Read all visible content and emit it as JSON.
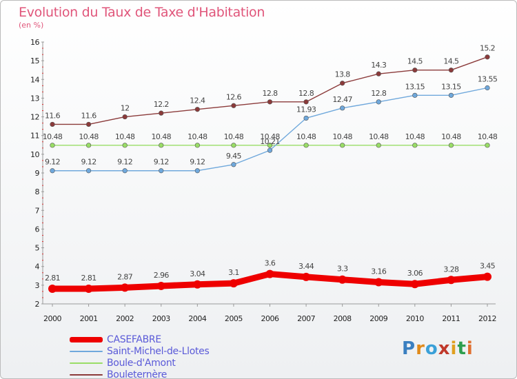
{
  "chart_data": {
    "type": "line",
    "title": "Evolution du Taux de Taxe d'Habitation",
    "subtitle": "(en %)",
    "x": [
      "2000",
      "2001",
      "2002",
      "2003",
      "2004",
      "2005",
      "2006",
      "2007",
      "2008",
      "2009",
      "2010",
      "2011",
      "2012"
    ],
    "ylim": [
      2,
      16
    ],
    "yticks": [
      2,
      3,
      4,
      5,
      6,
      7,
      8,
      9,
      10,
      11,
      12,
      13,
      14,
      15,
      16
    ],
    "grid": false,
    "legend_position": "bottom-left",
    "series": [
      {
        "name": "CASEFABRE",
        "color": "#ee0000",
        "values": [
          2.81,
          2.81,
          2.87,
          2.96,
          3.04,
          3.1,
          3.6,
          3.44,
          3.3,
          3.16,
          3.06,
          3.28,
          3.45
        ],
        "labels": [
          "2.81",
          "2.81",
          "2.87",
          "2.96",
          "3.04",
          "3.1",
          "3.6",
          "3.44",
          "3.3",
          "3.16",
          "3.06",
          "3.28",
          "3.45"
        ]
      },
      {
        "name": "Saint-Michel-de-Llotes",
        "color": "#6fa8dc",
        "values": [
          9.12,
          9.12,
          9.12,
          9.12,
          9.12,
          9.45,
          10.21,
          11.93,
          12.47,
          12.8,
          13.15,
          13.15,
          13.55
        ],
        "labels": [
          "9.12",
          "9.12",
          "9.12",
          "9.12",
          "9.12",
          "9.45",
          "10.21",
          "11.93",
          "12.47",
          "12.8",
          "13.15",
          "13.15",
          "13.55"
        ]
      },
      {
        "name": "Boule-d'Amont",
        "color": "#99dd66",
        "values": [
          10.48,
          10.48,
          10.48,
          10.48,
          10.48,
          10.48,
          10.48,
          10.48,
          10.48,
          10.48,
          10.48,
          10.48,
          10.48
        ],
        "labels": [
          "10.48",
          "10.48",
          "10.48",
          "10.48",
          "10.48",
          "10.48",
          "10.48",
          "10.48",
          "10.48",
          "10.48",
          "10.48",
          "10.48",
          "10.48"
        ]
      },
      {
        "name": "Bouleternère",
        "color": "#8b3a3a",
        "values": [
          11.6,
          11.6,
          12,
          12.2,
          12.4,
          12.6,
          12.8,
          12.8,
          13.8,
          14.3,
          14.5,
          14.5,
          15.2
        ],
        "labels": [
          "11.6",
          "11.6",
          "12",
          "12.2",
          "12.4",
          "12.6",
          "12.8",
          "12.8",
          "13.8",
          "14.3",
          "14.5",
          "14.5",
          "15.2"
        ]
      }
    ]
  },
  "logo": {
    "text": "Proxiti"
  }
}
